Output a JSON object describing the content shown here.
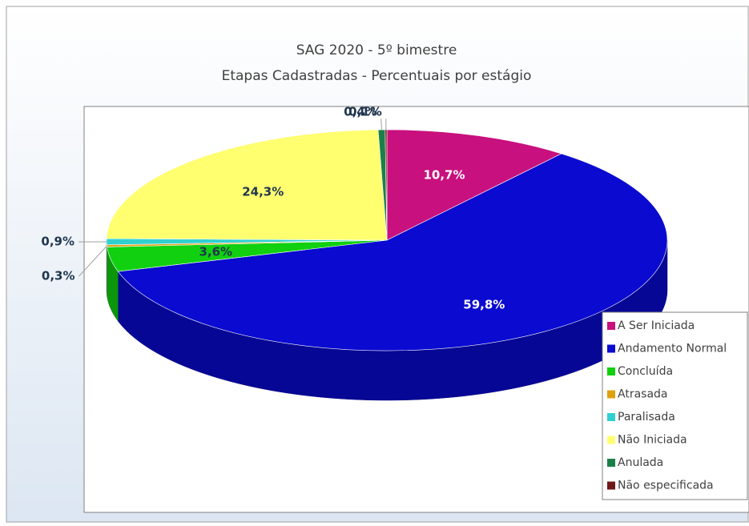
{
  "chart_data": {
    "type": "pie",
    "title": "SAG 2020 - 5º bimestre",
    "subtitle": "Etapas Cadastradas - Percentuais por estágio",
    "categories": [
      "A Ser Iniciada",
      "Andamento Normal",
      "Concluída",
      "Atrasada",
      "Paralisada",
      "Não Iniciada",
      "Anulada",
      "Não especificada"
    ],
    "values": [
      10.7,
      59.8,
      3.6,
      0.3,
      0.9,
      24.3,
      0.4,
      0.1
    ],
    "value_labels": [
      "10,7%",
      "59,8%",
      "3,6%",
      "0,3%",
      "0,9%",
      "24,3%",
      "0,4%",
      "0,1%"
    ],
    "colors": [
      "#c8107e",
      "#0a0ad0",
      "#10d010",
      "#e0a010",
      "#30d0d0",
      "#ffff70",
      "#1a8048",
      "#701818"
    ],
    "legend": "bottom-right"
  }
}
